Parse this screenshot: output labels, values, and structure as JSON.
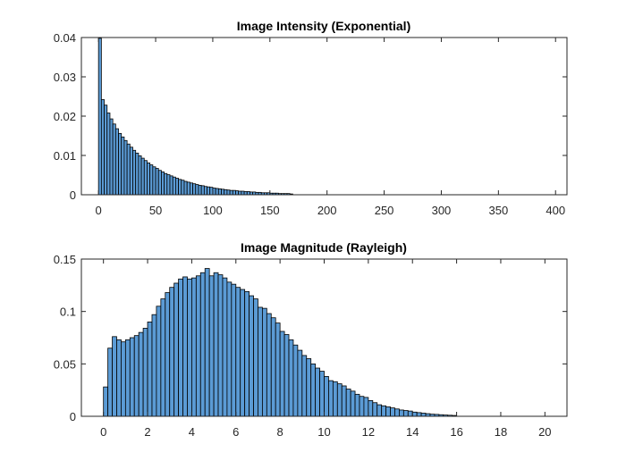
{
  "chart_data": [
    {
      "type": "bar",
      "title": "Image Intensity (Exponential)",
      "xlabel": "",
      "ylabel": "",
      "xlim": [
        -15,
        410
      ],
      "ylim": [
        0,
        0.04
      ],
      "xticks": [
        0,
        50,
        100,
        150,
        200,
        250,
        300,
        350,
        400
      ],
      "yticks": [
        0,
        0.01,
        0.02,
        0.03,
        0.04
      ],
      "xtick_labels": [
        "0",
        "50",
        "100",
        "150",
        "200",
        "250",
        "300",
        "350",
        "400"
      ],
      "ytick_labels": [
        "0",
        "0.01",
        "0.02",
        "0.03",
        "0.04"
      ],
      "bin_start": 0,
      "bin_width": 2.5,
      "values": [
        0.0398,
        0.0242,
        0.0228,
        0.0208,
        0.0193,
        0.018,
        0.0168,
        0.0156,
        0.0147,
        0.0138,
        0.0129,
        0.0121,
        0.0113,
        0.0106,
        0.0099,
        0.0093,
        0.0087,
        0.0081,
        0.0076,
        0.0071,
        0.0067,
        0.0062,
        0.0058,
        0.0054,
        0.0051,
        0.0048,
        0.0045,
        0.0042,
        0.0039,
        0.0037,
        0.0034,
        0.0032,
        0.003,
        0.0028,
        0.0026,
        0.0024,
        0.0023,
        0.0021,
        0.002,
        0.0019,
        0.0017,
        0.0016,
        0.0015,
        0.0014,
        0.0013,
        0.0012,
        0.0011,
        0.0011,
        0.001,
        0.0009,
        0.0009,
        0.0008,
        0.0008,
        0.0007,
        0.0007,
        0.0006,
        0.0006,
        0.0005,
        0.0005,
        0.0005,
        0.0004,
        0.0004,
        0.0004,
        0.0003,
        0.0003,
        0.0003,
        0.0003,
        0.0002
      ],
      "bar_color": "#5b9bd5",
      "edge_color": "#000000",
      "grid": false
    },
    {
      "type": "bar",
      "title": "Image Magnitude (Rayleigh)",
      "xlabel": "",
      "ylabel": "",
      "xlim": [
        -1,
        21
      ],
      "ylim": [
        0,
        0.15
      ],
      "xticks": [
        0,
        2,
        4,
        6,
        8,
        10,
        12,
        14,
        16,
        18,
        20
      ],
      "yticks": [
        0,
        0.05,
        0.1,
        0.15
      ],
      "xtick_labels": [
        "0",
        "2",
        "4",
        "6",
        "8",
        "10",
        "12",
        "14",
        "16",
        "18",
        "20"
      ],
      "ytick_labels": [
        "0",
        "0.05",
        "0.1",
        "0.15"
      ],
      "bin_start": 0,
      "bin_width": 0.2,
      "values": [
        0.028,
        0.065,
        0.076,
        0.073,
        0.071,
        0.073,
        0.075,
        0.077,
        0.08,
        0.084,
        0.09,
        0.097,
        0.105,
        0.112,
        0.118,
        0.123,
        0.127,
        0.131,
        0.133,
        0.131,
        0.132,
        0.134,
        0.137,
        0.141,
        0.134,
        0.137,
        0.135,
        0.132,
        0.128,
        0.126,
        0.123,
        0.121,
        0.119,
        0.115,
        0.112,
        0.104,
        0.103,
        0.098,
        0.094,
        0.089,
        0.081,
        0.078,
        0.073,
        0.068,
        0.063,
        0.058,
        0.055,
        0.05,
        0.046,
        0.043,
        0.038,
        0.034,
        0.033,
        0.031,
        0.029,
        0.026,
        0.024,
        0.021,
        0.019,
        0.018,
        0.015,
        0.013,
        0.011,
        0.01,
        0.009,
        0.008,
        0.007,
        0.006,
        0.0055,
        0.005,
        0.004,
        0.0035,
        0.003,
        0.0025,
        0.002,
        0.0018,
        0.0015,
        0.0012,
        0.001,
        0.0008
      ],
      "bar_color": "#5b9bd5",
      "edge_color": "#000000",
      "grid": false
    }
  ]
}
